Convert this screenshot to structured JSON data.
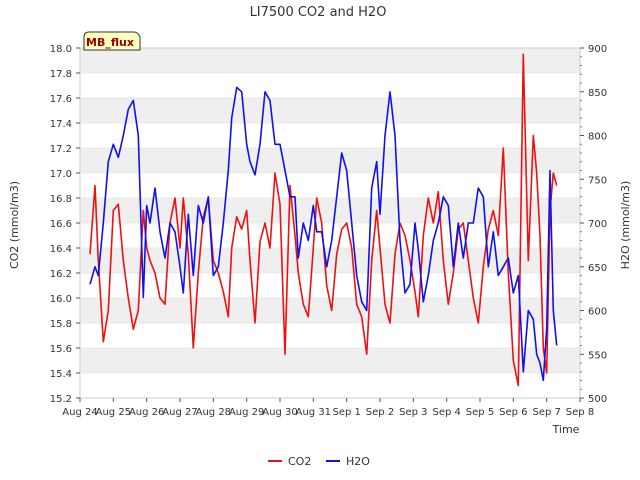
{
  "chart_data": {
    "type": "line",
    "title": "LI7500 CO2 and H2O",
    "site_label": "MB_flux",
    "xlabel": "Time",
    "ylabel_left": "CO2 (mmol/m3)",
    "ylabel_right": "H2O (mmol/m3)",
    "x_tick_labels": [
      "Aug 24",
      "Aug 25",
      "Aug 26",
      "Aug 27",
      "Aug 28",
      "Aug 29",
      "Aug 30",
      "Aug 31",
      "Sep 1",
      "Sep 2",
      "Sep 3",
      "Sep 4",
      "Sep 5",
      "Sep 6",
      "Sep 7",
      "Sep 8"
    ],
    "xlim": [
      0,
      15
    ],
    "ylim_left": [
      15.2,
      18.0
    ],
    "ylim_right": [
      500,
      900
    ],
    "y_ticks_left": [
      15.2,
      15.4,
      15.6,
      15.8,
      16.0,
      16.2,
      16.4,
      16.6,
      16.8,
      17.0,
      17.2,
      17.4,
      17.6,
      17.8,
      18.0
    ],
    "y_tick_labels_left": [
      "15.2",
      "15.4",
      "15.6",
      "15.8",
      "16.0",
      "16.2",
      "16.4",
      "16.6",
      "16.8",
      "17.0",
      "17.2",
      "17.4",
      "17.6",
      "17.8",
      "18.0"
    ],
    "y_ticks_right": [
      500,
      550,
      600,
      650,
      700,
      750,
      800,
      850,
      900
    ],
    "y_tick_labels_right": [
      "500",
      "550",
      "600",
      "650",
      "700",
      "750",
      "800",
      "850",
      "900"
    ],
    "grid": "horizontal bands",
    "legend_position": "bottom-center",
    "series": [
      {
        "name": "CO2",
        "axis": "left",
        "color": "#ee1111",
        "x": [
          0.3,
          0.45,
          0.55,
          0.7,
          0.85,
          1.0,
          1.15,
          1.3,
          1.45,
          1.6,
          1.75,
          1.9,
          2.0,
          2.1,
          2.25,
          2.4,
          2.55,
          2.7,
          2.85,
          3.0,
          3.1,
          3.25,
          3.4,
          3.55,
          3.7,
          3.85,
          4.0,
          4.15,
          4.3,
          4.45,
          4.55,
          4.7,
          4.85,
          5.0,
          5.1,
          5.25,
          5.4,
          5.55,
          5.7,
          5.85,
          6.0,
          6.15,
          6.3,
          6.45,
          6.55,
          6.7,
          6.85,
          7.0,
          7.1,
          7.25,
          7.4,
          7.55,
          7.7,
          7.85,
          8.0,
          8.15,
          8.3,
          8.45,
          8.6,
          8.75,
          8.9,
          9.0,
          9.15,
          9.3,
          9.45,
          9.6,
          9.75,
          9.9,
          10.05,
          10.15,
          10.3,
          10.45,
          10.6,
          10.75,
          10.9,
          11.05,
          11.2,
          11.35,
          11.5,
          11.65,
          11.8,
          11.95,
          12.1,
          12.25,
          12.4,
          12.55,
          12.7,
          12.85,
          13.0,
          13.15,
          13.3,
          13.45,
          13.6,
          13.7,
          13.8,
          13.9,
          14.0,
          14.1,
          14.2,
          14.3
        ],
        "values": [
          16.35,
          16.9,
          16.3,
          15.65,
          15.9,
          16.7,
          16.75,
          16.3,
          16.0,
          15.75,
          15.9,
          16.7,
          16.4,
          16.3,
          16.2,
          16.0,
          15.95,
          16.6,
          16.8,
          16.4,
          16.8,
          16.35,
          15.6,
          16.2,
          16.65,
          16.8,
          16.3,
          16.2,
          16.05,
          15.85,
          16.4,
          16.65,
          16.55,
          16.7,
          16.3,
          15.8,
          16.45,
          16.6,
          16.4,
          17.0,
          16.75,
          15.55,
          16.9,
          16.5,
          16.2,
          15.95,
          15.85,
          16.4,
          16.8,
          16.6,
          16.1,
          15.9,
          16.35,
          16.55,
          16.6,
          16.4,
          15.95,
          15.85,
          15.55,
          16.3,
          16.7,
          16.4,
          15.95,
          15.8,
          16.35,
          16.6,
          16.5,
          16.3,
          16.05,
          15.85,
          16.5,
          16.8,
          16.6,
          16.85,
          16.3,
          15.95,
          16.2,
          16.55,
          16.6,
          16.3,
          16.0,
          15.8,
          16.25,
          16.55,
          16.7,
          16.5,
          17.2,
          16.2,
          15.5,
          15.3,
          17.95,
          16.3,
          17.3,
          17.0,
          16.5,
          15.6,
          15.4,
          16.7,
          17.0,
          16.9
        ]
      },
      {
        "name": "H2O",
        "axis": "right",
        "color": "#1111ee",
        "x": [
          0.3,
          0.45,
          0.55,
          0.7,
          0.85,
          1.0,
          1.15,
          1.3,
          1.45,
          1.6,
          1.75,
          1.9,
          2.0,
          2.1,
          2.25,
          2.4,
          2.55,
          2.7,
          2.85,
          3.0,
          3.1,
          3.25,
          3.4,
          3.55,
          3.7,
          3.85,
          4.0,
          4.15,
          4.3,
          4.45,
          4.55,
          4.7,
          4.85,
          5.0,
          5.1,
          5.25,
          5.4,
          5.55,
          5.7,
          5.85,
          6.0,
          6.15,
          6.3,
          6.45,
          6.55,
          6.7,
          6.85,
          7.0,
          7.1,
          7.25,
          7.4,
          7.55,
          7.7,
          7.85,
          8.0,
          8.15,
          8.3,
          8.45,
          8.6,
          8.75,
          8.9,
          9.0,
          9.15,
          9.3,
          9.45,
          9.6,
          9.75,
          9.9,
          10.05,
          10.15,
          10.3,
          10.45,
          10.6,
          10.75,
          10.9,
          11.05,
          11.2,
          11.35,
          11.5,
          11.65,
          11.8,
          11.95,
          12.1,
          12.25,
          12.4,
          12.55,
          12.7,
          12.85,
          13.0,
          13.15,
          13.3,
          13.45,
          13.6,
          13.7,
          13.8,
          13.9,
          14.0,
          14.1,
          14.2,
          14.3
        ],
        "values": [
          630,
          650,
          640,
          700,
          770,
          790,
          775,
          800,
          830,
          840,
          800,
          615,
          720,
          700,
          740,
          690,
          660,
          700,
          690,
          650,
          620,
          710,
          640,
          720,
          700,
          730,
          640,
          650,
          700,
          760,
          820,
          855,
          850,
          790,
          770,
          755,
          790,
          850,
          840,
          790,
          790,
          760,
          730,
          730,
          660,
          700,
          680,
          720,
          690,
          690,
          650,
          680,
          730,
          780,
          760,
          700,
          640,
          610,
          600,
          740,
          770,
          710,
          800,
          850,
          800,
          680,
          620,
          630,
          700,
          670,
          610,
          640,
          680,
          700,
          730,
          720,
          650,
          700,
          660,
          700,
          700,
          740,
          730,
          650,
          690,
          640,
          650,
          660,
          620,
          640,
          530,
          600,
          590,
          550,
          540,
          520,
          580,
          760,
          600,
          560
        ]
      }
    ]
  }
}
